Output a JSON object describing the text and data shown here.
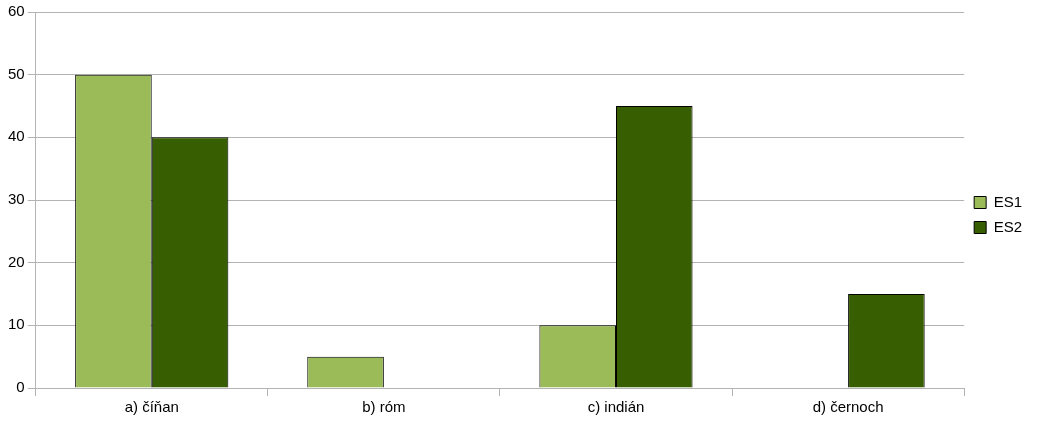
{
  "chart_data": {
    "type": "bar",
    "categories": [
      "a) číňan",
      "b) róm",
      "c) indián",
      "d) černoch"
    ],
    "series": [
      {
        "name": "ES1",
        "color": "#9bbb59",
        "values": [
          50,
          5,
          10,
          0
        ]
      },
      {
        "name": "ES2",
        "color": "#375e00",
        "values": [
          40,
          0,
          45,
          15
        ]
      }
    ],
    "ylim": [
      0,
      60
    ],
    "yticks": [
      0,
      10,
      20,
      30,
      40,
      50,
      60
    ],
    "grid": "y",
    "legend": "right"
  }
}
